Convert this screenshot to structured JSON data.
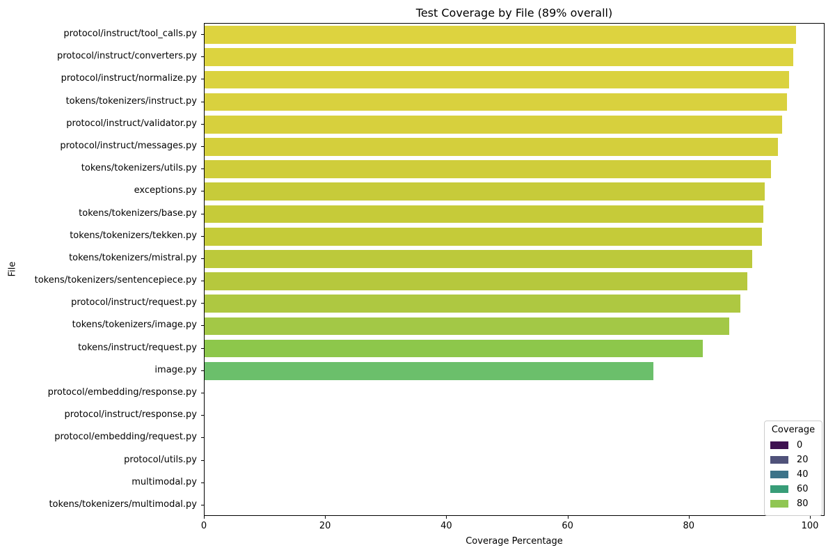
{
  "chart_data": {
    "type": "bar",
    "orientation": "horizontal",
    "title": "Test Coverage by File (89% overall)",
    "xlabel": "Coverage Percentage",
    "ylabel": "File",
    "xlim": [
      0,
      102.4
    ],
    "xticks": [
      0,
      20,
      40,
      60,
      80,
      100
    ],
    "grid": false,
    "categories": [
      "protocol/instruct/tool_calls.py",
      "protocol/instruct/converters.py",
      "protocol/instruct/normalize.py",
      "tokens/tokenizers/instruct.py",
      "protocol/instruct/validator.py",
      "protocol/instruct/messages.py",
      "tokens/tokenizers/utils.py",
      "exceptions.py",
      "tokens/tokenizers/base.py",
      "tokens/tokenizers/tekken.py",
      "tokens/tokenizers/mistral.py",
      "tokens/tokenizers/sentencepiece.py",
      "protocol/instruct/request.py",
      "tokens/tokenizers/image.py",
      "tokens/instruct/request.py",
      "image.py",
      "protocol/embedding/response.py",
      "protocol/instruct/response.py",
      "protocol/embedding/request.py",
      "protocol/utils.py",
      "multimodal.py",
      "tokens/tokenizers/multimodal.py"
    ],
    "values": [
      97.6,
      97.1,
      96.4,
      96.1,
      95.3,
      94.6,
      93.4,
      92.4,
      92.2,
      92.0,
      90.4,
      89.6,
      88.4,
      86.6,
      82.2,
      74.0,
      0,
      0,
      0,
      0,
      0,
      0
    ],
    "bar_colors": [
      "#ddd33f",
      "#dcd33f",
      "#dad23e",
      "#d9d13e",
      "#d7d03d",
      "#d4cf3c",
      "#cfcd3b",
      "#c7cb3a",
      "#c6cb39",
      "#c5cb39",
      "#bcc93b",
      "#b6c83d",
      "#aec841",
      "#a3c846",
      "#8dc74b",
      "#6bbf6b",
      "#3e1151",
      "#3e1151",
      "#3e1151",
      "#3e1151",
      "#3e1151",
      "#3e1151"
    ],
    "legend": {
      "title": "Coverage",
      "position": "lower right",
      "entries": [
        {
          "label": "0",
          "color": "#3e1151"
        },
        {
          "label": "20",
          "color": "#50527a"
        },
        {
          "label": "40",
          "color": "#3c7389"
        },
        {
          "label": "60",
          "color": "#389d78"
        },
        {
          "label": "80",
          "color": "#90c653"
        }
      ]
    }
  }
}
